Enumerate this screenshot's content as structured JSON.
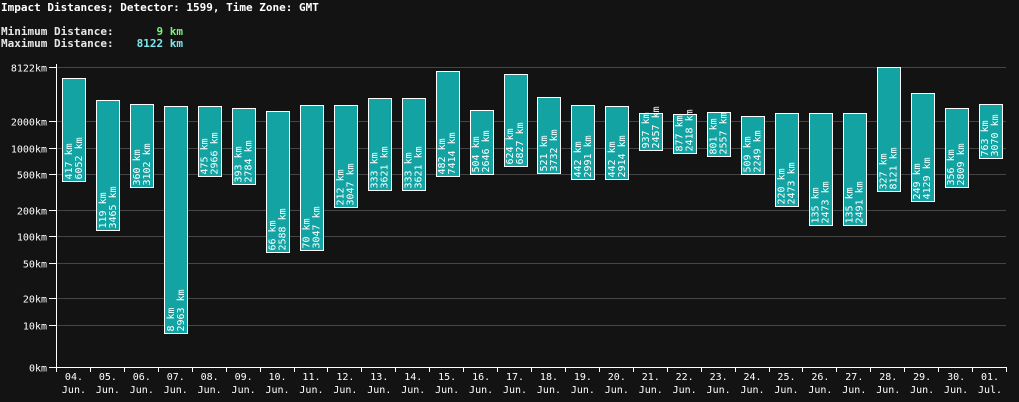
{
  "header": {
    "title": "Impact Distances; Detector: 1599, Time Zone: GMT",
    "min_label": "Minimum Distance:",
    "min_value": "9 km",
    "max_label": "Maximum Distance:",
    "max_value": "8122 km"
  },
  "colors": {
    "bar_fill": "#13a3a3",
    "bar_stroke": "#ffffff",
    "grid": "#454545",
    "min_value": "#7cf27c",
    "max_value": "#7ce9ee"
  },
  "chart_data": {
    "type": "bar",
    "title": "Impact Distances; Detector: 1599, Time Zone: GMT",
    "scale": "log",
    "ylim": [
      0,
      8122
    ],
    "y_ticks": [
      {
        "value": 8122,
        "label": "8122km"
      },
      {
        "value": 2000,
        "label": "2000km"
      },
      {
        "value": 1000,
        "label": "1000km"
      },
      {
        "value": 500,
        "label": "500km"
      },
      {
        "value": 200,
        "label": "200km"
      },
      {
        "value": 100,
        "label": "100km"
      },
      {
        "value": 50,
        "label": "50km"
      },
      {
        "value": 20,
        "label": "20km"
      },
      {
        "value": 10,
        "label": "10km"
      },
      {
        "value": 0,
        "label": "0km"
      }
    ],
    "grid": true,
    "categories": [
      {
        "day": "04.",
        "month": "Jun."
      },
      {
        "day": "05.",
        "month": "Jun."
      },
      {
        "day": "06.",
        "month": "Jun."
      },
      {
        "day": "07.",
        "month": "Jun."
      },
      {
        "day": "08.",
        "month": "Jun."
      },
      {
        "day": "09.",
        "month": "Jun."
      },
      {
        "day": "10.",
        "month": "Jun."
      },
      {
        "day": "11.",
        "month": "Jun."
      },
      {
        "day": "12.",
        "month": "Jun."
      },
      {
        "day": "13.",
        "month": "Jun."
      },
      {
        "day": "14.",
        "month": "Jun."
      },
      {
        "day": "15.",
        "month": "Jun."
      },
      {
        "day": "16.",
        "month": "Jun."
      },
      {
        "day": "17.",
        "month": "Jun."
      },
      {
        "day": "18.",
        "month": "Jun."
      },
      {
        "day": "19.",
        "month": "Jun."
      },
      {
        "day": "20.",
        "month": "Jun."
      },
      {
        "day": "21.",
        "month": "Jun."
      },
      {
        "day": "22.",
        "month": "Jun."
      },
      {
        "day": "23.",
        "month": "Jun."
      },
      {
        "day": "24.",
        "month": "Jun."
      },
      {
        "day": "25.",
        "month": "Jun."
      },
      {
        "day": "26.",
        "month": "Jun."
      },
      {
        "day": "27.",
        "month": "Jun."
      },
      {
        "day": "28.",
        "month": "Jun."
      },
      {
        "day": "29.",
        "month": "Jun."
      },
      {
        "day": "30.",
        "month": "Jun."
      },
      {
        "day": "01.",
        "month": "Jul."
      }
    ],
    "bars": [
      {
        "min": 417,
        "max": 6052
      },
      {
        "min": 119,
        "max": 3465
      },
      {
        "min": 360,
        "max": 3102
      },
      {
        "min": 8,
        "max": 2963
      },
      {
        "min": 475,
        "max": 2966
      },
      {
        "min": 393,
        "max": 2784
      },
      {
        "min": 66,
        "max": 2588
      },
      {
        "min": 70,
        "max": 3047
      },
      {
        "min": 212,
        "max": 3047
      },
      {
        "min": 333,
        "max": 3621
      },
      {
        "min": 333,
        "max": 3621
      },
      {
        "min": 482,
        "max": 7414
      },
      {
        "min": 504,
        "max": 2646
      },
      {
        "min": 624,
        "max": 6827
      },
      {
        "min": 521,
        "max": 3732
      },
      {
        "min": 442,
        "max": 2991
      },
      {
        "min": 442,
        "max": 2914
      },
      {
        "min": 937,
        "max": 2457
      },
      {
        "min": 877,
        "max": 2418
      },
      {
        "min": 801,
        "max": 2557
      },
      {
        "min": 509,
        "max": 2249
      },
      {
        "min": 220,
        "max": 2473
      },
      {
        "min": 135,
        "max": 2473
      },
      {
        "min": 135,
        "max": 2491
      },
      {
        "min": 327,
        "max": 8121
      },
      {
        "min": 249,
        "max": 4129
      },
      {
        "min": 356,
        "max": 2809
      },
      {
        "min": 763,
        "max": 3070
      }
    ],
    "label_unit": "km"
  }
}
